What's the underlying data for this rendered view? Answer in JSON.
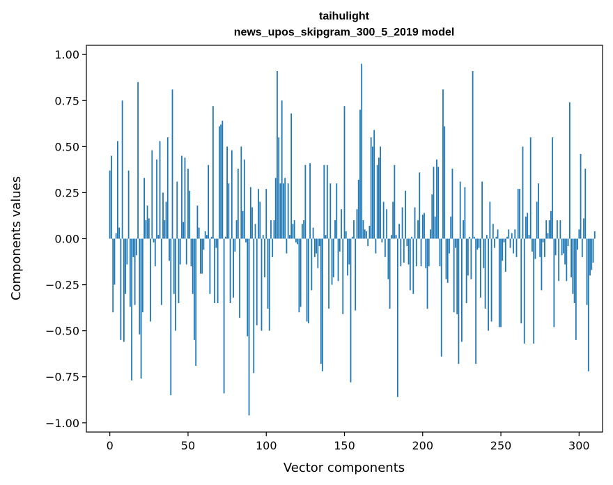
{
  "chart_data": {
    "type": "bar",
    "title": "taihulight",
    "subtitle": "news_upos_skipgram_300_5_2019 model",
    "xlabel": "Vector components",
    "ylabel": "Components values",
    "xlim": [
      -15,
      315
    ],
    "ylim": [
      -1.05,
      1.05
    ],
    "x_ticks": [
      0,
      50,
      100,
      150,
      200,
      250,
      300
    ],
    "x_tick_labels": [
      "0",
      "50",
      "100",
      "150",
      "200",
      "250",
      "300"
    ],
    "y_ticks": [
      1.0,
      0.75,
      0.5,
      0.25,
      0.0,
      -0.25,
      -0.5,
      -0.75,
      -1.0
    ],
    "y_tick_labels": [
      "1.00",
      "0.75",
      "0.50",
      "0.25",
      "0.00",
      "−0.25",
      "−0.50",
      "−0.75",
      "−1.00"
    ],
    "grid": false,
    "bar_color": "#1f77b4",
    "values": [
      0.37,
      0.45,
      -0.4,
      -0.25,
      0.03,
      0.53,
      0.06,
      -0.55,
      0.75,
      -0.56,
      -0.3,
      -0.14,
      0.37,
      -0.37,
      -0.77,
      -0.1,
      -0.36,
      -0.09,
      0.85,
      -0.52,
      -0.76,
      -0.4,
      0.33,
      0.1,
      0.18,
      0.11,
      -0.45,
      0.48,
      -0.02,
      -0.15,
      0.43,
      0.02,
      0.53,
      -0.36,
      0.25,
      0.1,
      0.2,
      0.55,
      -0.12,
      -0.85,
      0.81,
      -0.3,
      -0.5,
      0.31,
      -0.35,
      -0.14,
      0.45,
      0.09,
      0.44,
      -0.14,
      0.38,
      0.26,
      -0.15,
      -0.3,
      -0.55,
      -0.69,
      0.18,
      0.06,
      -0.19,
      -0.19,
      -0.06,
      0.04,
      0.02,
      0.4,
      -0.3,
      0.01,
      0.72,
      -0.35,
      -0.05,
      -0.35,
      0.61,
      0.62,
      0.64,
      -0.84,
      0.01,
      0.5,
      0.3,
      -0.35,
      0.48,
      -0.32,
      -0.07,
      0.1,
      0.38,
      -0.43,
      0.5,
      0.15,
      0.43,
      -0.02,
      -0.53,
      -0.96,
      0.28,
      0.17,
      -0.73,
      0.08,
      -0.47,
      0.27,
      0.2,
      -0.5,
      0.02,
      -0.21,
      0.27,
      -0.38,
      -0.5,
      0.1,
      -0.1,
      0.1,
      0.33,
      0.91,
      0.55,
      0.3,
      0.75,
      0.3,
      0.33,
      -0.08,
      0.3,
      0.02,
      0.68,
      0.08,
      0.1,
      -0.02,
      -0.03,
      -0.4,
      -0.37,
      0.08,
      0.1,
      0.4,
      -0.45,
      -0.46,
      0.41,
      -0.28,
      0.06,
      -0.1,
      -0.08,
      -0.16,
      -0.04,
      -0.68,
      -0.72,
      0.4,
      0.02,
      0.4,
      -0.38,
      0.3,
      -0.25,
      -0.21,
      0.1,
      0.3,
      -0.23,
      -0.07,
      0.16,
      -0.41,
      0.72,
      0.04,
      -0.2,
      -0.14,
      -0.78,
      0.01,
      0.1,
      -0.39,
      0.16,
      0.32,
      0.7,
      0.95,
      0.1,
      0.05,
      0.04,
      -0.04,
      0.07,
      0.55,
      0.5,
      0.59,
      -0.08,
      0.4,
      0.44,
      0.5,
      -0.02,
      0.2,
      -0.1,
      0.16,
      -0.22,
      -0.38,
      0.02,
      0.2,
      0.4,
      0.02,
      -0.86,
      0.08,
      -0.15,
      0.17,
      -0.13,
      0.26,
      -0.04,
      -0.14,
      -0.28,
      0.01,
      -0.3,
      0.17,
      -0.15,
      0.1,
      0.36,
      -0.15,
      0.13,
      0.14,
      -0.16,
      -0.38,
      -0.15,
      0.05,
      0.24,
      0.39,
      0.12,
      0.43,
      0.39,
      -0.15,
      -0.64,
      0.81,
      0.61,
      -0.22,
      -0.24,
      -0.08,
      0.12,
      0.38,
      -0.4,
      -0.05,
      -0.41,
      -0.68,
      0.31,
      -0.56,
      0.1,
      0.28,
      -0.35,
      -0.2,
      0.01,
      -0.22,
      0.91,
      0.01,
      -0.68,
      -0.06,
      -0.05,
      -0.32,
      0.31,
      -0.16,
      -0.38,
      0.02,
      -0.5,
      0.2,
      -0.45,
      0.08,
      -0.05,
      0.01,
      0.05,
      -0.48,
      -0.48,
      -0.12,
      -0.02,
      -0.18,
      0.01,
      0.05,
      -0.05,
      0.03,
      -0.08,
      0.05,
      -0.1,
      0.27,
      0.27,
      -0.46,
      0.5,
      -0.57,
      0.12,
      0.14,
      0.02,
      0.55,
      -0.07,
      -0.57,
      -0.11,
      0.2,
      0.3,
      -0.1,
      -0.28,
      -0.02,
      -0.1,
      0.1,
      0.03,
      0.1,
      0.15,
      0.55,
      -0.48,
      -0.09,
      0.1,
      -0.23,
      0.1,
      -0.09,
      -0.08,
      -0.14,
      -0.23,
      -0.04,
      0.74,
      -0.21,
      -0.3,
      -0.35,
      -0.55,
      -0.06,
      0.05,
      0.46,
      -0.1,
      0.11,
      0.38,
      -0.36,
      -0.72,
      -0.2,
      -0.17,
      -0.13,
      0.04
    ]
  }
}
